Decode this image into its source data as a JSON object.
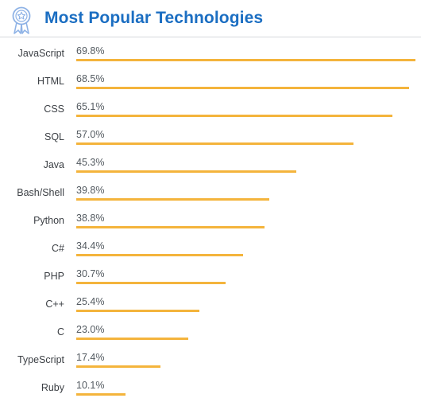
{
  "header": {
    "title": "Most Popular Technologies",
    "icon": "award-ribbon-icon"
  },
  "colors": {
    "title": "#1b6ec2",
    "bar": "#f4b43c",
    "icon": "#8fb3e6"
  },
  "chart_data": {
    "type": "bar",
    "orientation": "horizontal",
    "title": "Most Popular Technologies",
    "categories": [
      "JavaScript",
      "HTML",
      "CSS",
      "SQL",
      "Java",
      "Bash/Shell",
      "Python",
      "C#",
      "PHP",
      "C++",
      "C",
      "TypeScript",
      "Ruby"
    ],
    "values": [
      69.8,
      68.5,
      65.1,
      57.0,
      45.3,
      39.8,
      38.8,
      34.4,
      30.7,
      25.4,
      23.0,
      17.4,
      10.1
    ],
    "value_labels": [
      "69.8%",
      "68.5%",
      "65.1%",
      "57.0%",
      "45.3%",
      "39.8%",
      "38.8%",
      "34.4%",
      "30.7%",
      "25.4%",
      "23.0%",
      "17.4%",
      "10.1%"
    ],
    "value_suffix": "%",
    "xlim": [
      0,
      69.8
    ],
    "grid": false,
    "legend": "none"
  }
}
